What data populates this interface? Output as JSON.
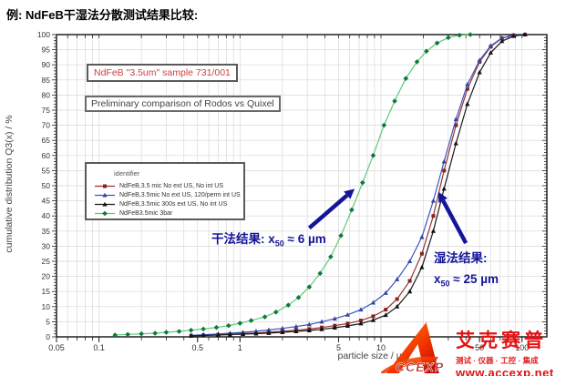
{
  "page": {
    "title": "例: NdFeB干湿法分散测试结果比较:"
  },
  "chart_data": {
    "type": "line",
    "title": "NdFeB \"3.5um\" sample 731/001",
    "subtitle": "Preliminary comparison of Rodos vs Quixel",
    "xlabel": "particle size / µm",
    "ylabel": "cumulative distribution Q3(x) / %",
    "x_scale": "log",
    "xlim": [
      0.05,
      150
    ],
    "ylim": [
      0,
      100
    ],
    "y_tick_step": 5,
    "x_ticks": [
      0.05,
      0.1,
      0.5,
      1,
      5,
      10,
      50,
      100
    ],
    "grid": true,
    "legend_header": "identifier",
    "legend_position": "middle-left",
    "series": [
      {
        "name": "NdFeB,3.5 mic No ext US, No int US",
        "line_color": "#993333",
        "marker_color": "#882222",
        "marker": "square",
        "x": [
          0.45,
          0.55,
          0.7,
          0.85,
          1.05,
          1.3,
          1.6,
          2.0,
          2.5,
          3.1,
          3.8,
          4.7,
          5.8,
          7.2,
          8.8,
          10.8,
          13,
          16,
          19.5,
          23.5,
          28,
          34,
          41,
          50,
          60,
          72,
          87,
          105
        ],
        "y": [
          0.4,
          0.55,
          0.7,
          0.9,
          1.1,
          1.3,
          1.55,
          1.85,
          2.2,
          2.6,
          3.1,
          3.7,
          4.4,
          5.4,
          6.8,
          9,
          12.5,
          18.5,
          27.5,
          40,
          55,
          70,
          82,
          91,
          96,
          98.8,
          99.8,
          100
        ]
      },
      {
        "name": "NdFeB,3.5mic No ext US, 120/perm int US",
        "line_color": "#3a55c0",
        "marker_color": "#31479e",
        "marker": "triangle",
        "x": [
          0.45,
          0.55,
          0.7,
          0.85,
          1.05,
          1.3,
          1.6,
          2.0,
          2.5,
          3.1,
          3.8,
          4.7,
          5.8,
          7.2,
          8.8,
          10.8,
          13,
          16,
          19.5,
          23.5,
          28,
          34,
          41,
          50,
          60,
          72,
          87,
          105
        ],
        "y": [
          0.5,
          0.7,
          0.95,
          1.2,
          1.5,
          1.85,
          2.3,
          2.8,
          3.4,
          4.1,
          5,
          6,
          7.3,
          9,
          11.3,
          14.5,
          19,
          25,
          33,
          45,
          58,
          72,
          83.5,
          91.5,
          96.3,
          98.9,
          99.8,
          100
        ]
      },
      {
        "name": "NdFeB,3.5mic 300s ext US, No int US",
        "line_color": "#1a1a1a",
        "marker_color": "#111111",
        "marker": "triangle",
        "x": [
          0.45,
          0.55,
          0.7,
          0.85,
          1.05,
          1.3,
          1.6,
          2.0,
          2.5,
          3.1,
          3.8,
          4.7,
          5.8,
          7.2,
          8.8,
          10.8,
          13,
          16,
          19.5,
          23.5,
          28,
          34,
          41,
          50,
          60,
          72,
          87,
          105
        ],
        "y": [
          0.3,
          0.45,
          0.6,
          0.75,
          0.9,
          1.05,
          1.25,
          1.5,
          1.8,
          2.1,
          2.5,
          3.0,
          3.6,
          4.4,
          5.5,
          7.2,
          10,
          15,
          23,
          35,
          49,
          64,
          77,
          87.5,
          94,
          97.8,
          99.5,
          100
        ]
      },
      {
        "name": "NdFeB3.5mic 3bar",
        "line_color": "#5ec878",
        "marker_color": "#0c7a38",
        "marker": "diamond",
        "x": [
          0.13,
          0.16,
          0.2,
          0.25,
          0.3,
          0.37,
          0.45,
          0.55,
          0.68,
          0.83,
          1.0,
          1.2,
          1.5,
          1.8,
          2.2,
          2.6,
          3.1,
          3.7,
          4.4,
          5.2,
          6.2,
          7.4,
          8.8,
          10.5,
          12.5,
          15,
          18,
          21,
          25,
          30,
          36,
          43
        ],
        "y": [
          0.6,
          0.8,
          1.0,
          1.2,
          1.5,
          1.8,
          2.2,
          2.6,
          3.1,
          3.7,
          4.5,
          5.4,
          6.6,
          8.2,
          10.5,
          13,
          16.5,
          21,
          26.5,
          33.5,
          42,
          51,
          60,
          70,
          78,
          85.5,
          91,
          94.5,
          97.2,
          99,
          99.8,
          100
        ]
      }
    ],
    "annotations": {
      "dry": {
        "prefix": "干法结果: x",
        "sub": "50",
        "suffix": " ≈ 6 µm",
        "arrow": {
          "from": [
            3.1,
            36
          ],
          "to": [
            6.5,
            49
          ]
        }
      },
      "wet": {
        "label": "湿法结果:",
        "prefix": "x",
        "sub": "50",
        "suffix": " ≈ 25 µm",
        "arrow": {
          "from": [
            40,
            31
          ],
          "to": [
            25.5,
            48
          ]
        }
      }
    },
    "colors": {
      "annotation": "#15159a",
      "grid": "#d9d9d9",
      "frame": "#111111",
      "tick_text": "#333333"
    }
  },
  "logo": {
    "watermark": "CCEXP",
    "cn_name": "艾克赛普",
    "tagline": "测试 · 仪器 · 工控 · 集成",
    "url": "www.accexp.net"
  }
}
